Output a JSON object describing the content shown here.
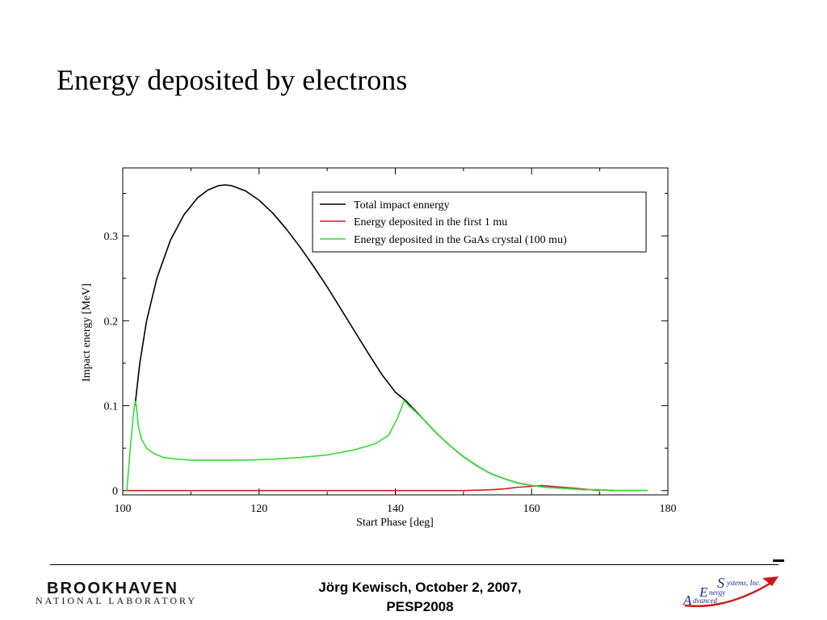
{
  "slide": {
    "title": "Energy deposited by electrons"
  },
  "footer": {
    "line1": "Jörg Kewisch, October 2, 2007,",
    "line2": "PESP2008"
  },
  "logos": {
    "left": {
      "name": "BROOKHAVEN",
      "subtitle": "NATIONAL LABORATORY"
    },
    "right": {
      "s": "S",
      "ystems": "ystems, Inc.",
      "e": "E",
      "nergy": "nergy",
      "a": "A",
      "dvanced": "dvanced"
    }
  },
  "colors": {
    "total": "#000000",
    "first": "#cc2020",
    "gaas": "#33dd33"
  },
  "chart_data": {
    "type": "line",
    "xlabel": "Start Phase [deg]",
    "ylabel": "Impact energy [MeV]",
    "xlim": [
      100,
      180
    ],
    "ylim": [
      -0.005,
      0.38
    ],
    "xticks": [
      100,
      120,
      140,
      160,
      180
    ],
    "yticks": [
      0,
      0.1,
      0.2,
      0.3
    ],
    "xtick_labels": [
      "100",
      "120",
      "140",
      "160",
      "180"
    ],
    "ytick_labels": [
      "0",
      "0.1",
      "0.2",
      "0.3"
    ],
    "grid": false,
    "legend": "top-right",
    "series": [
      {
        "name": "Total impact ennergy",
        "color": "#000000",
        "x": [
          101.8,
          102.5,
          103.5,
          105,
          107,
          109,
          111,
          112.5,
          114,
          115,
          116,
          118,
          120,
          122,
          124,
          126,
          128,
          130,
          132,
          134,
          136,
          138,
          140,
          141.5,
          144,
          146,
          148,
          150,
          152,
          154,
          156,
          158,
          160,
          162,
          164,
          166,
          168,
          170,
          172,
          174,
          177
        ],
        "y": [
          0.1,
          0.15,
          0.2,
          0.25,
          0.295,
          0.325,
          0.345,
          0.354,
          0.359,
          0.36,
          0.359,
          0.353,
          0.342,
          0.327,
          0.308,
          0.287,
          0.264,
          0.24,
          0.214,
          0.188,
          0.162,
          0.137,
          0.116,
          0.106,
          0.085,
          0.068,
          0.053,
          0.04,
          0.029,
          0.02,
          0.014,
          0.009,
          0.006,
          0.004,
          0.003,
          0.002,
          0.001,
          0.001,
          0.0,
          0.0,
          0.0
        ]
      },
      {
        "name": "Energy deposited in the first 1 mu",
        "color": "#cc2020",
        "x": [
          100.5,
          110,
          120,
          130,
          140,
          150,
          154,
          156,
          158,
          160,
          161.5,
          163,
          166,
          170
        ],
        "y": [
          0.0,
          0.0,
          0.0,
          0.0,
          0.0,
          0.0,
          0.001,
          0.002,
          0.004,
          0.005,
          0.006,
          0.005,
          0.003,
          0.0
        ]
      },
      {
        "name": "Energy deposited in the GaAs crystal (100 mu)",
        "color": "#33dd33",
        "x": [
          100.6,
          101,
          101.5,
          101.8,
          102,
          102.3,
          102.8,
          103.5,
          104.5,
          106,
          108,
          110,
          114,
          118,
          122,
          126,
          130,
          134,
          137,
          139,
          140.3,
          141.3,
          142,
          144,
          146,
          148,
          150,
          152,
          154,
          156,
          158,
          160,
          162,
          164,
          166,
          168,
          170,
          172,
          174,
          177
        ],
        "y": [
          0.0,
          0.04,
          0.085,
          0.105,
          0.1,
          0.075,
          0.06,
          0.05,
          0.044,
          0.039,
          0.037,
          0.036,
          0.036,
          0.036,
          0.037,
          0.039,
          0.042,
          0.048,
          0.055,
          0.065,
          0.085,
          0.106,
          0.1,
          0.085,
          0.068,
          0.053,
          0.04,
          0.029,
          0.02,
          0.014,
          0.009,
          0.006,
          0.004,
          0.003,
          0.002,
          0.001,
          0.001,
          0.0,
          0.0,
          0.0
        ]
      }
    ]
  }
}
